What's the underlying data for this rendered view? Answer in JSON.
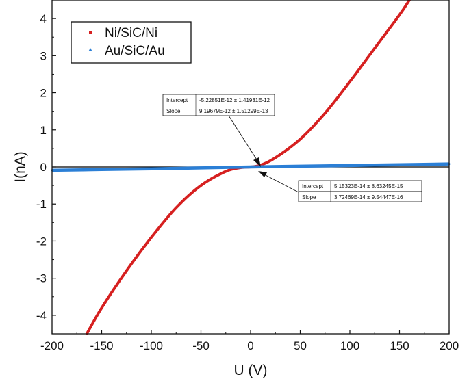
{
  "chart_data": {
    "type": "scatter",
    "xlabel": "U (V)",
    "ylabel": "I(nA)",
    "xlim": [
      -200,
      200
    ],
    "ylim": [
      -4.5,
      4.5
    ],
    "xticks": [
      -200,
      -150,
      -100,
      -50,
      0,
      50,
      100,
      150,
      200
    ],
    "yticks": [
      -4,
      -3,
      -2,
      -1,
      0,
      1,
      2,
      3,
      4
    ],
    "xtick_labels": [
      "-200",
      "-150",
      "-100",
      "-50",
      "0",
      "50",
      "100",
      "150",
      "200"
    ],
    "ytick_labels": [
      "-4",
      "-3",
      "-2",
      "-1",
      "0",
      "1",
      "2",
      "3",
      "4"
    ],
    "grid": false,
    "legend_position": "top-left",
    "series": [
      {
        "name": "Ni/SiC/Ni",
        "color": "#d62020",
        "marker": "square",
        "x": [
          -165,
          -150,
          -125,
          -100,
          -75,
          -50,
          -25,
          -10,
          0,
          10,
          25,
          50,
          75,
          100,
          125,
          150,
          160
        ],
        "y": [
          -4.5,
          -3.8,
          -2.8,
          -1.9,
          -1.1,
          -0.5,
          -0.12,
          -0.02,
          0,
          0.05,
          0.25,
          0.75,
          1.45,
          2.3,
          3.2,
          4.1,
          4.5
        ]
      },
      {
        "name": "Au/SiC/Au",
        "color": "#2b7fd6",
        "marker": "triangle",
        "x": [
          -200,
          -150,
          -100,
          -50,
          0,
          50,
          100,
          150,
          200
        ],
        "y": [
          -0.09,
          -0.07,
          -0.05,
          -0.025,
          0,
          0.02,
          0.04,
          0.06,
          0.08
        ]
      }
    ],
    "zero_line": {
      "y": 0,
      "color": "#000000"
    },
    "fit_tables": [
      {
        "rows": [
          {
            "label": "Intercept",
            "value": "-5.22851E-12 ± 1.41931E-12"
          },
          {
            "label": "Slope",
            "value": "9.19679E-12 ± 1.51299E-13"
          }
        ],
        "arrow_target": {
          "x": 8,
          "y": 0.02
        }
      },
      {
        "rows": [
          {
            "label": "Intercept",
            "value": "5.15323E-14 ± 8.63245E-15"
          },
          {
            "label": "Slope",
            "value": "3.72469E-14 ± 9.54447E-16"
          }
        ],
        "arrow_target": {
          "x": 8,
          "y": -0.02
        }
      }
    ]
  }
}
